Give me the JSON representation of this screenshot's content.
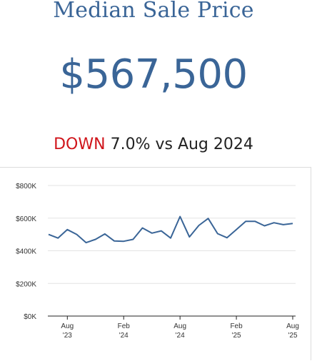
{
  "header": {
    "title": "Median Sale Price",
    "value": "$567,500",
    "direction": "DOWN",
    "change_text": "7.0% vs Aug 2024"
  },
  "colors": {
    "title": "#3a6597",
    "line": "#3a6597",
    "down": "#d0151b"
  },
  "chart_data": {
    "type": "line",
    "title": "",
    "xlabel": "",
    "ylabel": "",
    "ylim": [
      0,
      800000
    ],
    "y_ticks": [
      0,
      200000,
      400000,
      600000,
      800000
    ],
    "y_tick_labels": [
      "$0K",
      "$200K",
      "$400K",
      "$600K",
      "$800K"
    ],
    "x": [
      "2023-06",
      "2023-07",
      "2023-08",
      "2023-09",
      "2023-10",
      "2023-11",
      "2023-12",
      "2024-01",
      "2024-02",
      "2024-03",
      "2024-04",
      "2024-05",
      "2024-06",
      "2024-07",
      "2024-08",
      "2024-09",
      "2024-10",
      "2024-11",
      "2024-12",
      "2025-01",
      "2025-02",
      "2025-03",
      "2025-04",
      "2025-05",
      "2025-06",
      "2025-07",
      "2025-08"
    ],
    "x_ticks": [
      {
        "index": 2,
        "line1": "Aug",
        "line2": "'23"
      },
      {
        "index": 8,
        "line1": "Feb",
        "line2": "'24"
      },
      {
        "index": 14,
        "line1": "Aug",
        "line2": "'24"
      },
      {
        "index": 20,
        "line1": "Feb",
        "line2": "'25"
      },
      {
        "index": 26,
        "line1": "Aug",
        "line2": "'25"
      }
    ],
    "series": [
      {
        "name": "",
        "values": [
          500000,
          478000,
          530000,
          500000,
          450000,
          470000,
          503000,
          460000,
          458000,
          470000,
          540000,
          508000,
          522000,
          478000,
          610000,
          485000,
          555000,
          598000,
          505000,
          480000,
          530000,
          580000,
          580000,
          553000,
          572000,
          560000,
          567500
        ]
      }
    ],
    "grid": true,
    "legend": "none"
  }
}
